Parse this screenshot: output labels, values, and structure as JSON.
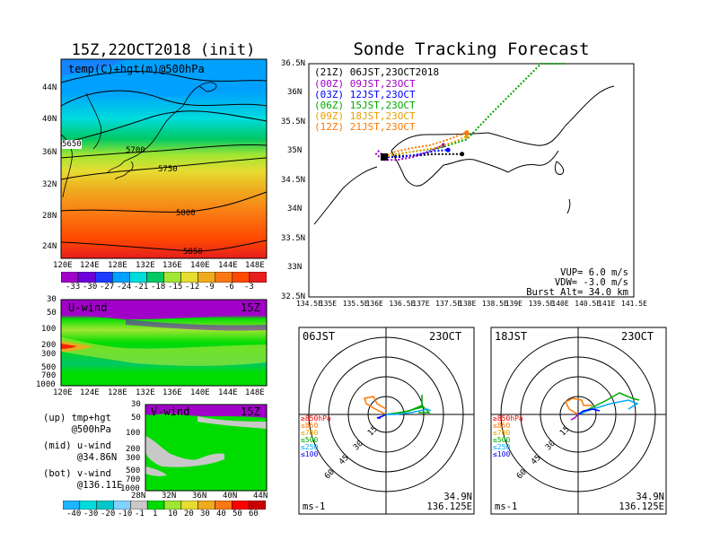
{
  "left_panel": {
    "title": "15Z,22OCT2018 (init)",
    "map": {
      "label": "temp(C)+hgt(m)@500hPa",
      "y_ticks": [
        "44N",
        "40N",
        "36N",
        "32N",
        "28N",
        "24N"
      ],
      "x_ticks": [
        "120E",
        "124E",
        "128E",
        "132E",
        "136E",
        "140E",
        "144E",
        "148E"
      ],
      "contour_labels": [
        "5700",
        "5750",
        "5800",
        "5850",
        "5650"
      ]
    },
    "temp_colorbar": {
      "labels": [
        "-33",
        "-30",
        "-27",
        "-24",
        "-21",
        "-18",
        "-15",
        "-12",
        "-9",
        "-6",
        "-3"
      ]
    },
    "uwind": {
      "label": "U-wind",
      "time": "15Z",
      "y_ticks": [
        "30",
        "50",
        "100",
        "200",
        "300",
        "500",
        "700",
        "1000"
      ],
      "x_ticks": [
        "120E",
        "124E",
        "128E",
        "132E",
        "136E",
        "140E",
        "144E",
        "148E"
      ]
    },
    "vwind": {
      "label": "V-wind",
      "time": "15Z",
      "y_ticks": [
        "30",
        "50",
        "100",
        "200",
        "300",
        "500",
        "700",
        "1000"
      ],
      "x_ticks": [
        "28N",
        "32N",
        "36N",
        "40N",
        "44N"
      ]
    },
    "wind_colorbar": {
      "labels": [
        "-40",
        "-30",
        "-20",
        "-10",
        "-1",
        "1",
        "10",
        "20",
        "30",
        "40",
        "50",
        "60"
      ]
    },
    "captions": {
      "up": "(up) tmp+hgt\n     @500hPa",
      "mid": "(mid) u-wind\n      @34.86N",
      "bot": "(bot) v-wind\n      @136.11E"
    }
  },
  "right_panel": {
    "title": "Sonde Tracking Forecast",
    "x_ticks": [
      "134.5E",
      "135E",
      "135.5E",
      "136E",
      "136.5E",
      "137E",
      "137.5E",
      "138E",
      "138.5E",
      "139E",
      "139.5E",
      "140E",
      "140.5E",
      "141E",
      "141.5E"
    ],
    "y_ticks": [
      "36.5N",
      "36N",
      "35.5N",
      "35N",
      "34.5N",
      "34N",
      "33.5N",
      "33N",
      "32.5N"
    ],
    "legend": [
      {
        "text": "(21Z) 06JST,23OCT2018",
        "color": "#000000"
      },
      {
        "text": "(00Z) 09JST,23OCT",
        "color": "#a000c8"
      },
      {
        "text": "(03Z) 12JST,23OCT",
        "color": "#0000ff"
      },
      {
        "text": "(06Z) 15JST,23OCT",
        "color": "#00aa00"
      },
      {
        "text": "(09Z) 18JST,23OCT",
        "color": "#e6a000"
      },
      {
        "text": "(12Z) 21JST,23OCT",
        "color": "#ff7800"
      }
    ],
    "params": [
      "VUP=  6.0 m/s",
      "VDW= -3.0 m/s",
      "Burst Alt= 34.0 km"
    ]
  },
  "hodographs": [
    {
      "time": "06JST",
      "date": "23OCT",
      "lat": "34.9N",
      "lon": "136.125E",
      "unit": "ms-1",
      "ring_labels": [
        "15",
        "30",
        "45",
        "60"
      ],
      "levels": [
        {
          "text": "≥850hPa",
          "color": "#ff0000"
        },
        {
          "text": "≤850",
          "color": "#ff7800"
        },
        {
          "text": "≤700",
          "color": "#e6a000"
        },
        {
          "text": "≤500",
          "color": "#00aa00"
        },
        {
          "text": "≤250",
          "color": "#00aaff"
        },
        {
          "text": "≤100",
          "color": "#0000ff"
        }
      ]
    },
    {
      "time": "18JST",
      "date": "23OCT",
      "lat": "34.9N",
      "lon": "136.125E",
      "unit": "ms-1",
      "ring_labels": [
        "15",
        "30",
        "45",
        "60"
      ],
      "levels": [
        {
          "text": "≥850hPa",
          "color": "#ff0000"
        },
        {
          "text": "≤850",
          "color": "#ff7800"
        },
        {
          "text": "≤700",
          "color": "#e6a000"
        },
        {
          "text": "≤500",
          "color": "#00aa00"
        },
        {
          "text": "≤250",
          "color": "#00aaff"
        },
        {
          "text": "≤100",
          "color": "#0000ff"
        }
      ]
    }
  ],
  "chart_data": {
    "type": "line",
    "title": "Sonde Tracking Forecast",
    "x_range": [
      134.5,
      141.5
    ],
    "y_range": [
      32.5,
      36.5
    ],
    "launch_point": {
      "lon": 136.125,
      "lat": 34.9
    },
    "series": [
      {
        "name": "(21Z) 06JST,23OCT2018",
        "color": "#000000",
        "points": [
          [
            136.125,
            34.9
          ],
          [
            136.3,
            34.92
          ],
          [
            136.6,
            34.92
          ],
          [
            136.9,
            34.93
          ],
          [
            137.2,
            34.95
          ],
          [
            137.5,
            34.95
          ],
          [
            137.8,
            34.95
          ]
        ]
      },
      {
        "name": "(00Z) 09JST,23OCT",
        "color": "#a000c8",
        "points": [
          [
            136.125,
            34.9
          ],
          [
            136.0,
            35.0
          ],
          [
            135.95,
            34.95
          ],
          [
            136.1,
            34.85
          ],
          [
            136.4,
            34.85
          ],
          [
            136.75,
            34.9
          ],
          [
            137.1,
            35.0
          ],
          [
            137.4,
            35.1
          ]
        ]
      },
      {
        "name": "(03Z) 12JST,23OCT",
        "color": "#0000ff",
        "points": [
          [
            136.125,
            34.9
          ],
          [
            136.2,
            34.9
          ],
          [
            136.5,
            34.9
          ],
          [
            136.9,
            34.95
          ],
          [
            137.2,
            35.0
          ],
          [
            137.5,
            35.02
          ]
        ]
      },
      {
        "name": "(06Z) 15JST,23OCT",
        "color": "#00aa00",
        "points": [
          [
            136.125,
            34.9
          ],
          [
            136.4,
            34.95
          ],
          [
            136.8,
            35.0
          ],
          [
            137.3,
            35.05
          ],
          [
            137.7,
            35.15
          ],
          [
            137.9,
            35.2
          ],
          [
            138.5,
            35.7
          ],
          [
            139.5,
            36.5
          ],
          [
            140.0,
            36.9
          ]
        ]
      },
      {
        "name": "(09Z) 18JST,23OCT",
        "color": "#e6a000",
        "points": [
          [
            136.125,
            34.9
          ],
          [
            136.4,
            34.95
          ],
          [
            136.8,
            35.0
          ],
          [
            137.2,
            35.05
          ],
          [
            137.6,
            35.15
          ],
          [
            137.9,
            35.25
          ]
        ]
      },
      {
        "name": "(12Z) 21JST,23OCT",
        "color": "#ff7800",
        "points": [
          [
            136.125,
            34.9
          ],
          [
            136.3,
            34.98
          ],
          [
            136.7,
            35.05
          ],
          [
            137.1,
            35.1
          ],
          [
            137.5,
            35.2
          ],
          [
            137.9,
            35.32
          ]
        ]
      }
    ]
  },
  "colors": {
    "temp_scale": [
      "#a000c8",
      "#6e00dc",
      "#1e3cff",
      "#00a0ff",
      "#00dcdc",
      "#00c864",
      "#a0e632",
      "#e6dc32",
      "#f0aa1e",
      "#fa7814",
      "#ff4a00",
      "#e61e1e"
    ],
    "wind_scale": [
      "#1eb4ff",
      "#00dcdc",
      "#00c8c8",
      "#82d2ff",
      "#c8c8c8",
      "#00dc00",
      "#a0e632",
      "#e6dc32",
      "#f0aa1e",
      "#fa7814",
      "#ff0000",
      "#c80000"
    ]
  }
}
